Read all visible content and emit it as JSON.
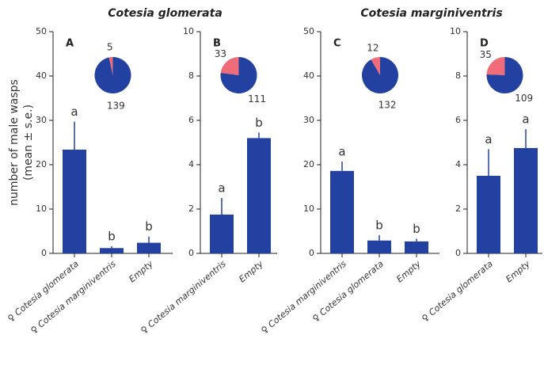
{
  "chart_data": [
    {
      "type": "bar",
      "title": "Cotesia glomerata",
      "panel": "A",
      "ylabel": [
        "number of male wasps",
        "(mean ± s.e.)"
      ],
      "categories": [
        "♀ Cotesia glomerata",
        "♀ Cotesia marginiventris",
        "Empty"
      ],
      "values": [
        23.4,
        1.2,
        2.4
      ],
      "errors": [
        6.3,
        0.4,
        1.4
      ],
      "letters": [
        "a",
        "b",
        "b"
      ],
      "color": "#2341a0",
      "ylim": [
        0,
        50
      ],
      "yticks": [
        0,
        10,
        20,
        30,
        40,
        50
      ],
      "pie": {
        "values": [
          5,
          139
        ],
        "colors": [
          "#f06c78",
          "#2341a0"
        ]
      }
    },
    {
      "type": "bar",
      "panel": "B",
      "categories": [
        "♀ Cotesia marginiventris",
        "Empty"
      ],
      "values": [
        1.75,
        5.2
      ],
      "errors": [
        0.75,
        0.25
      ],
      "letters": [
        "a",
        "b"
      ],
      "color": "#2341a0",
      "ylim": [
        0,
        10
      ],
      "yticks": [
        0,
        2,
        4,
        6,
        8,
        10
      ],
      "pie": {
        "values": [
          33,
          111
        ],
        "colors": [
          "#f06c78",
          "#2341a0"
        ]
      }
    },
    {
      "type": "bar",
      "title": "Cotesia marginiventris",
      "panel": "C",
      "categories": [
        "♀ Cotesia marginiventris",
        "♀ Cotesia glomerata",
        "Empty"
      ],
      "values": [
        18.6,
        2.9,
        2.7
      ],
      "errors": [
        2.1,
        1.2,
        0.6
      ],
      "letters": [
        "a",
        "b",
        "b"
      ],
      "color": "#2341a0",
      "ylim": [
        0,
        50
      ],
      "yticks": [
        0,
        10,
        20,
        30,
        40,
        50
      ],
      "pie": {
        "values": [
          12,
          132
        ],
        "colors": [
          "#f06c78",
          "#2341a0"
        ]
      }
    },
    {
      "type": "bar",
      "panel": "D",
      "categories": [
        "♀ Cotesia glomerata",
        "Empty"
      ],
      "values": [
        3.5,
        4.75
      ],
      "errors": [
        1.2,
        0.85
      ],
      "letters": [
        "a",
        "a"
      ],
      "color": "#2341a0",
      "ylim": [
        0,
        10
      ],
      "yticks": [
        0,
        2,
        4,
        6,
        8,
        10
      ],
      "pie": {
        "values": [
          35,
          109
        ],
        "colors": [
          "#f06c78",
          "#2341a0"
        ]
      }
    }
  ]
}
